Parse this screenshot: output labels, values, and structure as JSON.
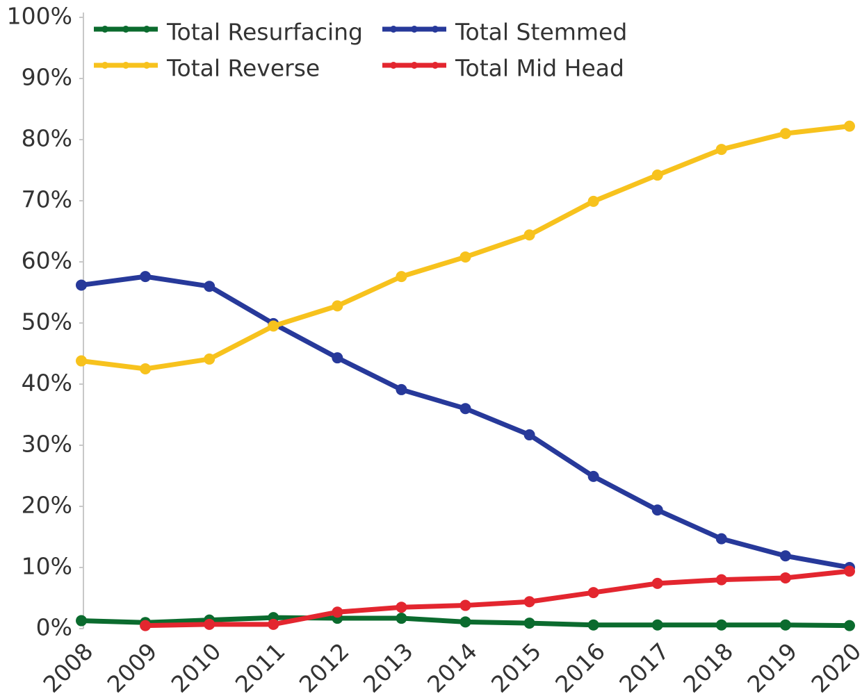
{
  "chart_data": {
    "type": "line",
    "categories": [
      "2008",
      "2009",
      "2010",
      "2011",
      "2012",
      "2013",
      "2014",
      "2015",
      "2016",
      "2017",
      "2018",
      "2019",
      "2020"
    ],
    "series": [
      {
        "name": "Total Resurfacing",
        "color": "#0b6b2e",
        "values": [
          1.3,
          1.0,
          1.4,
          1.8,
          1.7,
          1.7,
          1.1,
          0.9,
          0.6,
          0.6,
          0.6,
          0.6,
          0.5
        ]
      },
      {
        "name": "Total Stemmed",
        "color": "#27399a",
        "values": [
          56.2,
          57.6,
          56.0,
          49.9,
          44.3,
          39.1,
          36.0,
          31.7,
          24.9,
          19.4,
          14.7,
          11.9,
          10.0
        ]
      },
      {
        "name": "Total Reverse",
        "color": "#f7c21d",
        "values": [
          43.8,
          42.5,
          44.1,
          49.5,
          52.8,
          57.6,
          60.8,
          64.4,
          69.9,
          74.2,
          78.4,
          81.0,
          82.2
        ]
      },
      {
        "name": "Total Mid Head",
        "color": "#e3262f",
        "values": [
          null,
          0.5,
          0.7,
          0.7,
          2.7,
          3.5,
          3.8,
          4.4,
          5.9,
          7.4,
          8.0,
          8.3,
          9.4
        ]
      }
    ],
    "ylim": [
      0,
      100
    ],
    "yticks": [
      {
        "value": 0,
        "label": "0%"
      },
      {
        "value": 10,
        "label": "10%"
      },
      {
        "value": 20,
        "label": "20%"
      },
      {
        "value": 30,
        "label": "30%"
      },
      {
        "value": 40,
        "label": "40%"
      },
      {
        "value": 50,
        "label": "50%"
      },
      {
        "value": 60,
        "label": "60%"
      },
      {
        "value": 70,
        "label": "70%"
      },
      {
        "value": 80,
        "label": "80%"
      },
      {
        "value": 90,
        "label": "90%"
      },
      {
        "value": 100,
        "label": "100%"
      }
    ],
    "grid": false,
    "legend": "top"
  }
}
